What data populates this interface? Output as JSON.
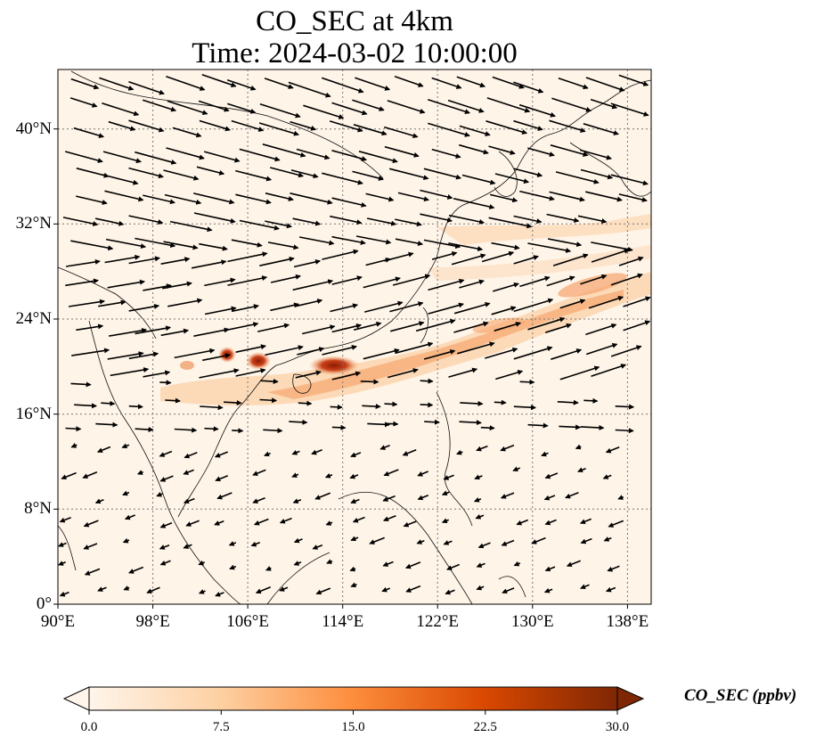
{
  "title": {
    "line1": "CO_SEC at 4km",
    "line2": "Time: 2024-03-02 10:00:00"
  },
  "map": {
    "lon_range": [
      90,
      140
    ],
    "lat_range": [
      0,
      45
    ],
    "lon_ticks": [
      "90°E",
      "98°E",
      "106°E",
      "114°E",
      "122°E",
      "130°E",
      "138°E"
    ],
    "lat_ticks": [
      "0°",
      "8°N",
      "16°N",
      "24°N",
      "32°N",
      "40°N"
    ],
    "gridlines": true,
    "field": "CO_SEC",
    "vectors": "wind vectors (black arrows)",
    "plume_max_ppbv": 30
  },
  "colorbar": {
    "label": "CO_SEC (ppbv)",
    "ticks": [
      "0.0",
      "7.5",
      "15.0",
      "22.5",
      "30.0"
    ],
    "range": [
      0,
      30
    ],
    "extend": "both",
    "colors": [
      "#fff5eb",
      "#fdd0a2",
      "#fd8d3c",
      "#d94801",
      "#7f2704"
    ]
  }
}
